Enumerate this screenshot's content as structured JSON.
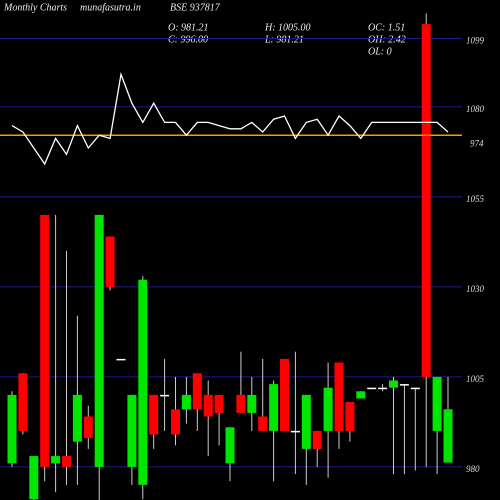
{
  "header": {
    "title": "Monthly Charts",
    "source": "munafasutra.in",
    "symbol": "BSE 937817",
    "stats": [
      "O: 981.21",
      "H: 1005.00",
      "OC: 1.51",
      "C: 996.00",
      "L: 981.21",
      "OH: 2.42",
      "OL: 0"
    ]
  },
  "chart_data": [
    {
      "type": "candlestick",
      "open": [
        981,
        1006,
        971,
        1050,
        981,
        983,
        987,
        994,
        980,
        1044,
        1010,
        980,
        975,
        1000,
        1000,
        996,
        996,
        1006,
        1000,
        1000,
        981,
        1000,
        995,
        994,
        990,
        1010,
        990,
        985,
        990,
        990,
        1009,
        998,
        999,
        1002,
        1002,
        1002,
        1003,
        1002,
        1103,
        990,
        981.21
      ],
      "high": [
        1001,
        1006,
        983,
        1050,
        1050,
        1040,
        1022,
        997,
        1050,
        1044,
        1010,
        1000,
        1033,
        1000,
        1010,
        1005,
        1005,
        1006,
        1004,
        1000,
        991,
        1012,
        1005,
        1010,
        1004,
        1010,
        1012,
        1000,
        990,
        1009,
        1009,
        998,
        1001,
        1002,
        1003,
        1005,
        1003,
        1002,
        1106,
        1005,
        1005
      ],
      "low": [
        980,
        989,
        970,
        976,
        973,
        975,
        975,
        985,
        970,
        1029,
        1010,
        975,
        971,
        985,
        990,
        986,
        992,
        990,
        983,
        986,
        976,
        995,
        990,
        990,
        976,
        990,
        978,
        975,
        980,
        977,
        985,
        987,
        999,
        1002,
        1001,
        978,
        978,
        979,
        980,
        978,
        981.21
      ],
      "close": [
        1000,
        990,
        983,
        980,
        983,
        980,
        1000,
        988,
        1050,
        1030,
        1010,
        1000,
        1032,
        989,
        1000,
        989,
        1000,
        996,
        994,
        995,
        991,
        995,
        1000,
        990,
        1003,
        990,
        990,
        1000,
        985,
        1002,
        990,
        990,
        1001,
        1002,
        1002,
        1004,
        1003,
        1002,
        1005,
        1005,
        996
      ],
      "up_color": "#00e600",
      "down_color": "#ff0000",
      "ylim": [
        970.8,
        1109.7
      ],
      "yticks": [
        980,
        1005,
        1030,
        1055,
        1080,
        1099
      ],
      "grid": true,
      "grid_color": "#1c1c8f"
    },
    {
      "type": "line",
      "color": "#ffffff",
      "values": [
        977,
        975,
        970,
        965,
        973,
        968,
        977,
        970,
        974,
        973,
        993,
        984,
        978,
        984,
        978,
        978,
        974,
        978,
        978,
        977,
        976,
        976,
        978,
        975,
        979,
        980,
        973,
        978,
        979,
        974,
        980,
        977,
        973,
        978,
        978,
        978,
        978,
        978,
        978,
        978,
        975
      ],
      "ylim": [
        960,
        1010
      ],
      "reference": 974,
      "reference_color": "#ff9900"
    }
  ]
}
